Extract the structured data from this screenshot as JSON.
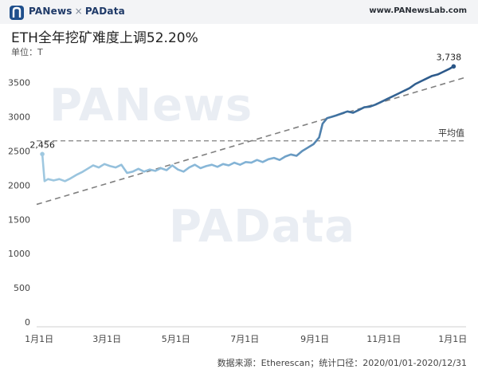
{
  "header": {
    "brand_left": "PANews",
    "brand_sep": "×",
    "brand_right": "PAData",
    "site": "www.PANewsLab.com"
  },
  "title": "ETH全年挖矿难度上调52.20%",
  "unit_label": "单位：T",
  "source": "数据来源：Etherescan；统计口径：2020/01/01-2020/12/31",
  "watermarks": [
    "PANews",
    "PAData"
  ],
  "colors": {
    "line_start": "#9fc8e0",
    "line_end": "#2a5687",
    "trend": "#808080",
    "average": "#8c8c8c"
  },
  "chart_data": {
    "type": "line",
    "title": "ETH全年挖矿难度上调52.20%",
    "xlabel": "",
    "ylabel": "单位：T",
    "ylim": [
      0,
      3800
    ],
    "yticks": [
      0,
      500,
      1000,
      1500,
      2000,
      2500,
      3000,
      3500
    ],
    "xticks": [
      {
        "label": "1月1日",
        "day": 0
      },
      {
        "label": "3月1日",
        "day": 60
      },
      {
        "label": "5月1日",
        "day": 121
      },
      {
        "label": "7月1日",
        "day": 182
      },
      {
        "label": "9月1日",
        "day": 244
      },
      {
        "label": "11月1日",
        "day": 305
      },
      {
        "label": "1月1日",
        "day": 366
      }
    ],
    "grid": false,
    "legend": "none",
    "series": [
      {
        "points": [
          [
            0,
            2456
          ],
          [
            2,
            2060
          ],
          [
            5,
            2090
          ],
          [
            10,
            2070
          ],
          [
            15,
            2090
          ],
          [
            20,
            2060
          ],
          [
            25,
            2100
          ],
          [
            30,
            2150
          ],
          [
            35,
            2190
          ],
          [
            40,
            2240
          ],
          [
            45,
            2290
          ],
          [
            50,
            2260
          ],
          [
            55,
            2310
          ],
          [
            60,
            2280
          ],
          [
            65,
            2260
          ],
          [
            70,
            2300
          ],
          [
            75,
            2180
          ],
          [
            80,
            2200
          ],
          [
            85,
            2240
          ],
          [
            90,
            2200
          ],
          [
            95,
            2230
          ],
          [
            100,
            2210
          ],
          [
            105,
            2250
          ],
          [
            110,
            2220
          ],
          [
            115,
            2290
          ],
          [
            120,
            2230
          ],
          [
            125,
            2200
          ],
          [
            130,
            2260
          ],
          [
            135,
            2300
          ],
          [
            140,
            2250
          ],
          [
            145,
            2280
          ],
          [
            150,
            2300
          ],
          [
            155,
            2270
          ],
          [
            160,
            2310
          ],
          [
            165,
            2290
          ],
          [
            170,
            2330
          ],
          [
            175,
            2300
          ],
          [
            180,
            2340
          ],
          [
            185,
            2330
          ],
          [
            190,
            2370
          ],
          [
            195,
            2340
          ],
          [
            200,
            2380
          ],
          [
            205,
            2400
          ],
          [
            210,
            2370
          ],
          [
            215,
            2420
          ],
          [
            220,
            2450
          ],
          [
            225,
            2430
          ],
          [
            230,
            2500
          ],
          [
            235,
            2550
          ],
          [
            240,
            2600
          ],
          [
            245,
            2700
          ],
          [
            248,
            2900
          ],
          [
            252,
            2980
          ],
          [
            256,
            3000
          ],
          [
            260,
            3020
          ],
          [
            265,
            3050
          ],
          [
            270,
            3080
          ],
          [
            275,
            3060
          ],
          [
            280,
            3100
          ],
          [
            285,
            3140
          ],
          [
            290,
            3150
          ],
          [
            295,
            3180
          ],
          [
            300,
            3220
          ],
          [
            305,
            3260
          ],
          [
            310,
            3300
          ],
          [
            315,
            3340
          ],
          [
            320,
            3380
          ],
          [
            325,
            3420
          ],
          [
            330,
            3480
          ],
          [
            335,
            3520
          ],
          [
            340,
            3560
          ],
          [
            345,
            3600
          ],
          [
            350,
            3620
          ],
          [
            355,
            3660
          ],
          [
            360,
            3700
          ],
          [
            364,
            3738
          ]
        ]
      }
    ],
    "annotations": [
      {
        "label": "2,456",
        "day": 0,
        "value": 2456
      },
      {
        "label": "3,738",
        "day": 364,
        "value": 3738
      }
    ],
    "trendline": {
      "from": [
        -5,
        1720
      ],
      "to": [
        375,
        3580
      ]
    },
    "average": {
      "label": "平均值",
      "value": 2650
    }
  }
}
